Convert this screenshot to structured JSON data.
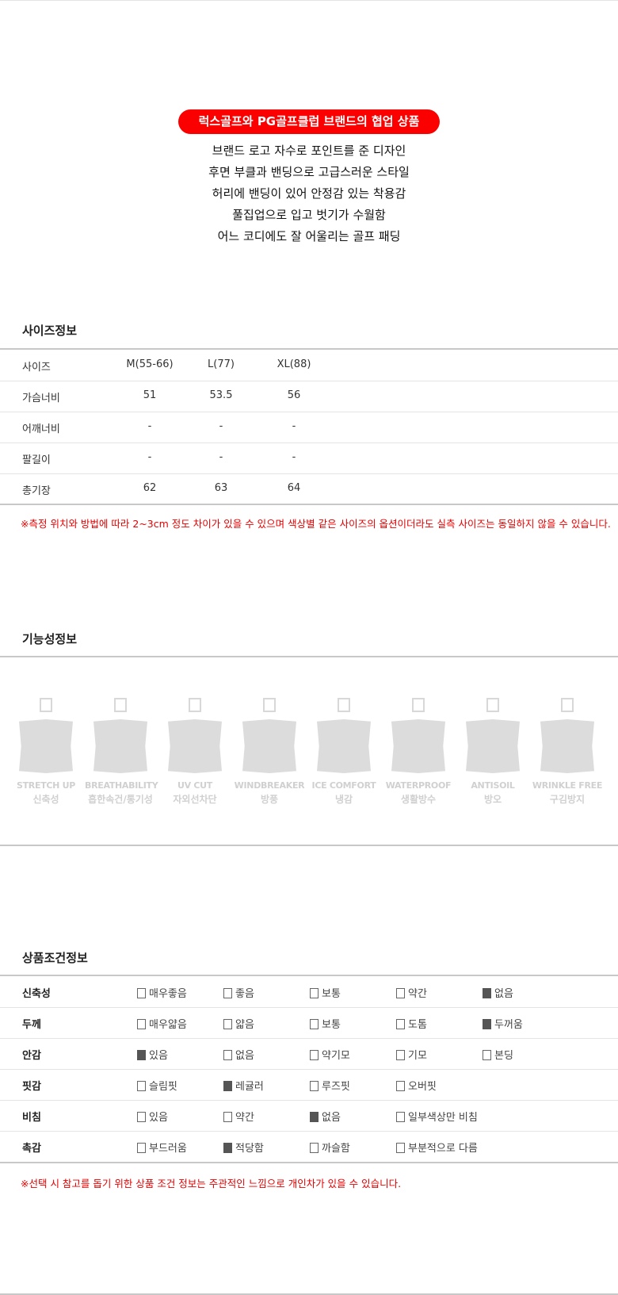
{
  "intro": {
    "badge": "럭스골프와 PG골프클럽 브랜드의 협업 상품",
    "badge_color": "#fa0000",
    "features": [
      "브랜드 로고 자수로 포인트를 준 디자인",
      "후면 부클과 밴딩으로 고급스러운 스타일",
      "허리에 밴딩이 있어 안정감 있는 착용감",
      "풀집업으로 입고 벗기가 수월함",
      "어느 코디에도 잘 어울리는 골프 패딩"
    ]
  },
  "size_info": {
    "title": "사이즈정보",
    "header": {
      "label": "사이즈",
      "cols": [
        "M(55-66)",
        "L(77)",
        "XL(88)"
      ]
    },
    "rows": [
      {
        "label": "가슴너비",
        "values": [
          "51",
          "53.5",
          "56"
        ]
      },
      {
        "label": "어깨너비",
        "values": [
          "-",
          "-",
          "-"
        ]
      },
      {
        "label": "팔길이",
        "values": [
          "-",
          "-",
          "-"
        ]
      },
      {
        "label": "총기장",
        "values": [
          "62",
          "63",
          "64"
        ]
      }
    ],
    "note": "※측정 위치와 방법에 따라 2~3cm 정도 차이가 있을 수 있으며 색상별 같은 사이즈의 옵션이더라도 실측 사이즈는 동일하지 않을 수 있습니다."
  },
  "function_info": {
    "title": "기능성정보",
    "items": [
      {
        "en": "STRETCH UP",
        "ko": "신축성",
        "checked": false
      },
      {
        "en": "BREATHABILITY",
        "ko": "흡한속건/통기성",
        "checked": false
      },
      {
        "en": "UV CUT",
        "ko": "자외선차단",
        "checked": false
      },
      {
        "en": "WINDBREAKER",
        "ko": "방풍",
        "checked": false
      },
      {
        "en": "ICE COMFORT",
        "ko": "냉감",
        "checked": false
      },
      {
        "en": "WATERPROOF",
        "ko": "생활방수",
        "checked": false
      },
      {
        "en": "ANTISOIL",
        "ko": "방오",
        "checked": false
      },
      {
        "en": "WRINKLE FREE",
        "ko": "구김방지",
        "checked": false
      }
    ]
  },
  "condition_info": {
    "title": "상품조건정보",
    "rows": [
      {
        "label": "신축성",
        "options": [
          {
            "text": "매우좋음",
            "checked": false
          },
          {
            "text": "좋음",
            "checked": false
          },
          {
            "text": "보통",
            "checked": false
          },
          {
            "text": "약간",
            "checked": false
          },
          {
            "text": "없음",
            "checked": true
          }
        ]
      },
      {
        "label": "두께",
        "options": [
          {
            "text": "매우얇음",
            "checked": false
          },
          {
            "text": "얇음",
            "checked": false
          },
          {
            "text": "보통",
            "checked": false
          },
          {
            "text": "도톰",
            "checked": false
          },
          {
            "text": "두꺼움",
            "checked": true
          }
        ]
      },
      {
        "label": "안감",
        "options": [
          {
            "text": "있음",
            "checked": true
          },
          {
            "text": "없음",
            "checked": false
          },
          {
            "text": "약기모",
            "checked": false
          },
          {
            "text": "기모",
            "checked": false
          },
          {
            "text": "본딩",
            "checked": false
          }
        ]
      },
      {
        "label": "핏감",
        "options": [
          {
            "text": "슬림핏",
            "checked": false
          },
          {
            "text": "레귤러",
            "checked": true
          },
          {
            "text": "루즈핏",
            "checked": false
          },
          {
            "text": "오버핏",
            "checked": false
          }
        ]
      },
      {
        "label": "비침",
        "options": [
          {
            "text": "있음",
            "checked": false
          },
          {
            "text": "약간",
            "checked": false
          },
          {
            "text": "없음",
            "checked": true
          },
          {
            "text": "일부색상만 비침",
            "checked": false
          }
        ]
      },
      {
        "label": "촉감",
        "options": [
          {
            "text": "부드러움",
            "checked": false
          },
          {
            "text": "적당함",
            "checked": true
          },
          {
            "text": "까슬함",
            "checked": false
          },
          {
            "text": "부분적으로 다름",
            "checked": false
          }
        ]
      }
    ],
    "note": "※선택 시 참고를 돕기 위한 상품 조건 정보는 주관적인 느낌으로 개인차가 있을 수 있습니다."
  }
}
